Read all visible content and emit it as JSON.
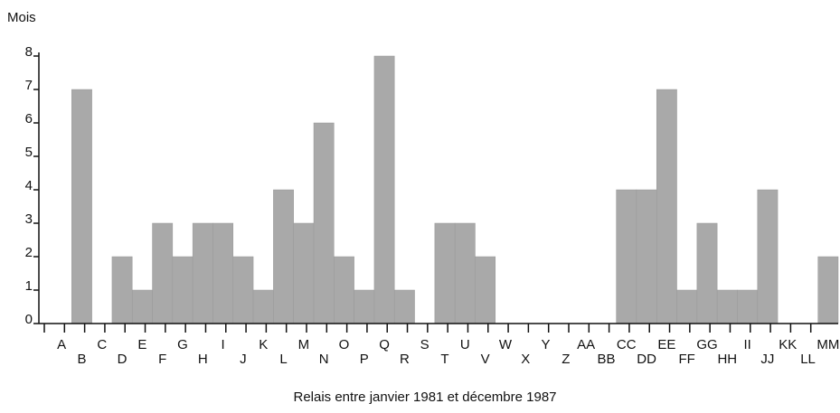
{
  "chart_data": {
    "type": "bar",
    "y_label": "Mois",
    "x_label": "Relais entre janvier 1981 et décembre 1987",
    "categories": [
      "A",
      "B",
      "C",
      "D",
      "E",
      "F",
      "G",
      "H",
      "I",
      "J",
      "K",
      "L",
      "M",
      "N",
      "O",
      "P",
      "Q",
      "R",
      "S",
      "T",
      "U",
      "V",
      "W",
      "X",
      "Y",
      "Z",
      "AA",
      "BB",
      "CC",
      "DD",
      "EE",
      "FF",
      "GG",
      "HH",
      "II",
      "JJ",
      "KK",
      "LL",
      "MM"
    ],
    "values": [
      0,
      7,
      0,
      2,
      1,
      3,
      2,
      3,
      3,
      2,
      1,
      4,
      3,
      6,
      2,
      1,
      8,
      1,
      0,
      3,
      3,
      2,
      0,
      0,
      0,
      0,
      0,
      0,
      4,
      4,
      7,
      1,
      3,
      1,
      1,
      4,
      0,
      0,
      2
    ],
    "color": "#a9a9a9",
    "ylim": [
      0,
      8
    ],
    "yticks": [
      0,
      1,
      2,
      3,
      4,
      5,
      6,
      7,
      8
    ]
  }
}
